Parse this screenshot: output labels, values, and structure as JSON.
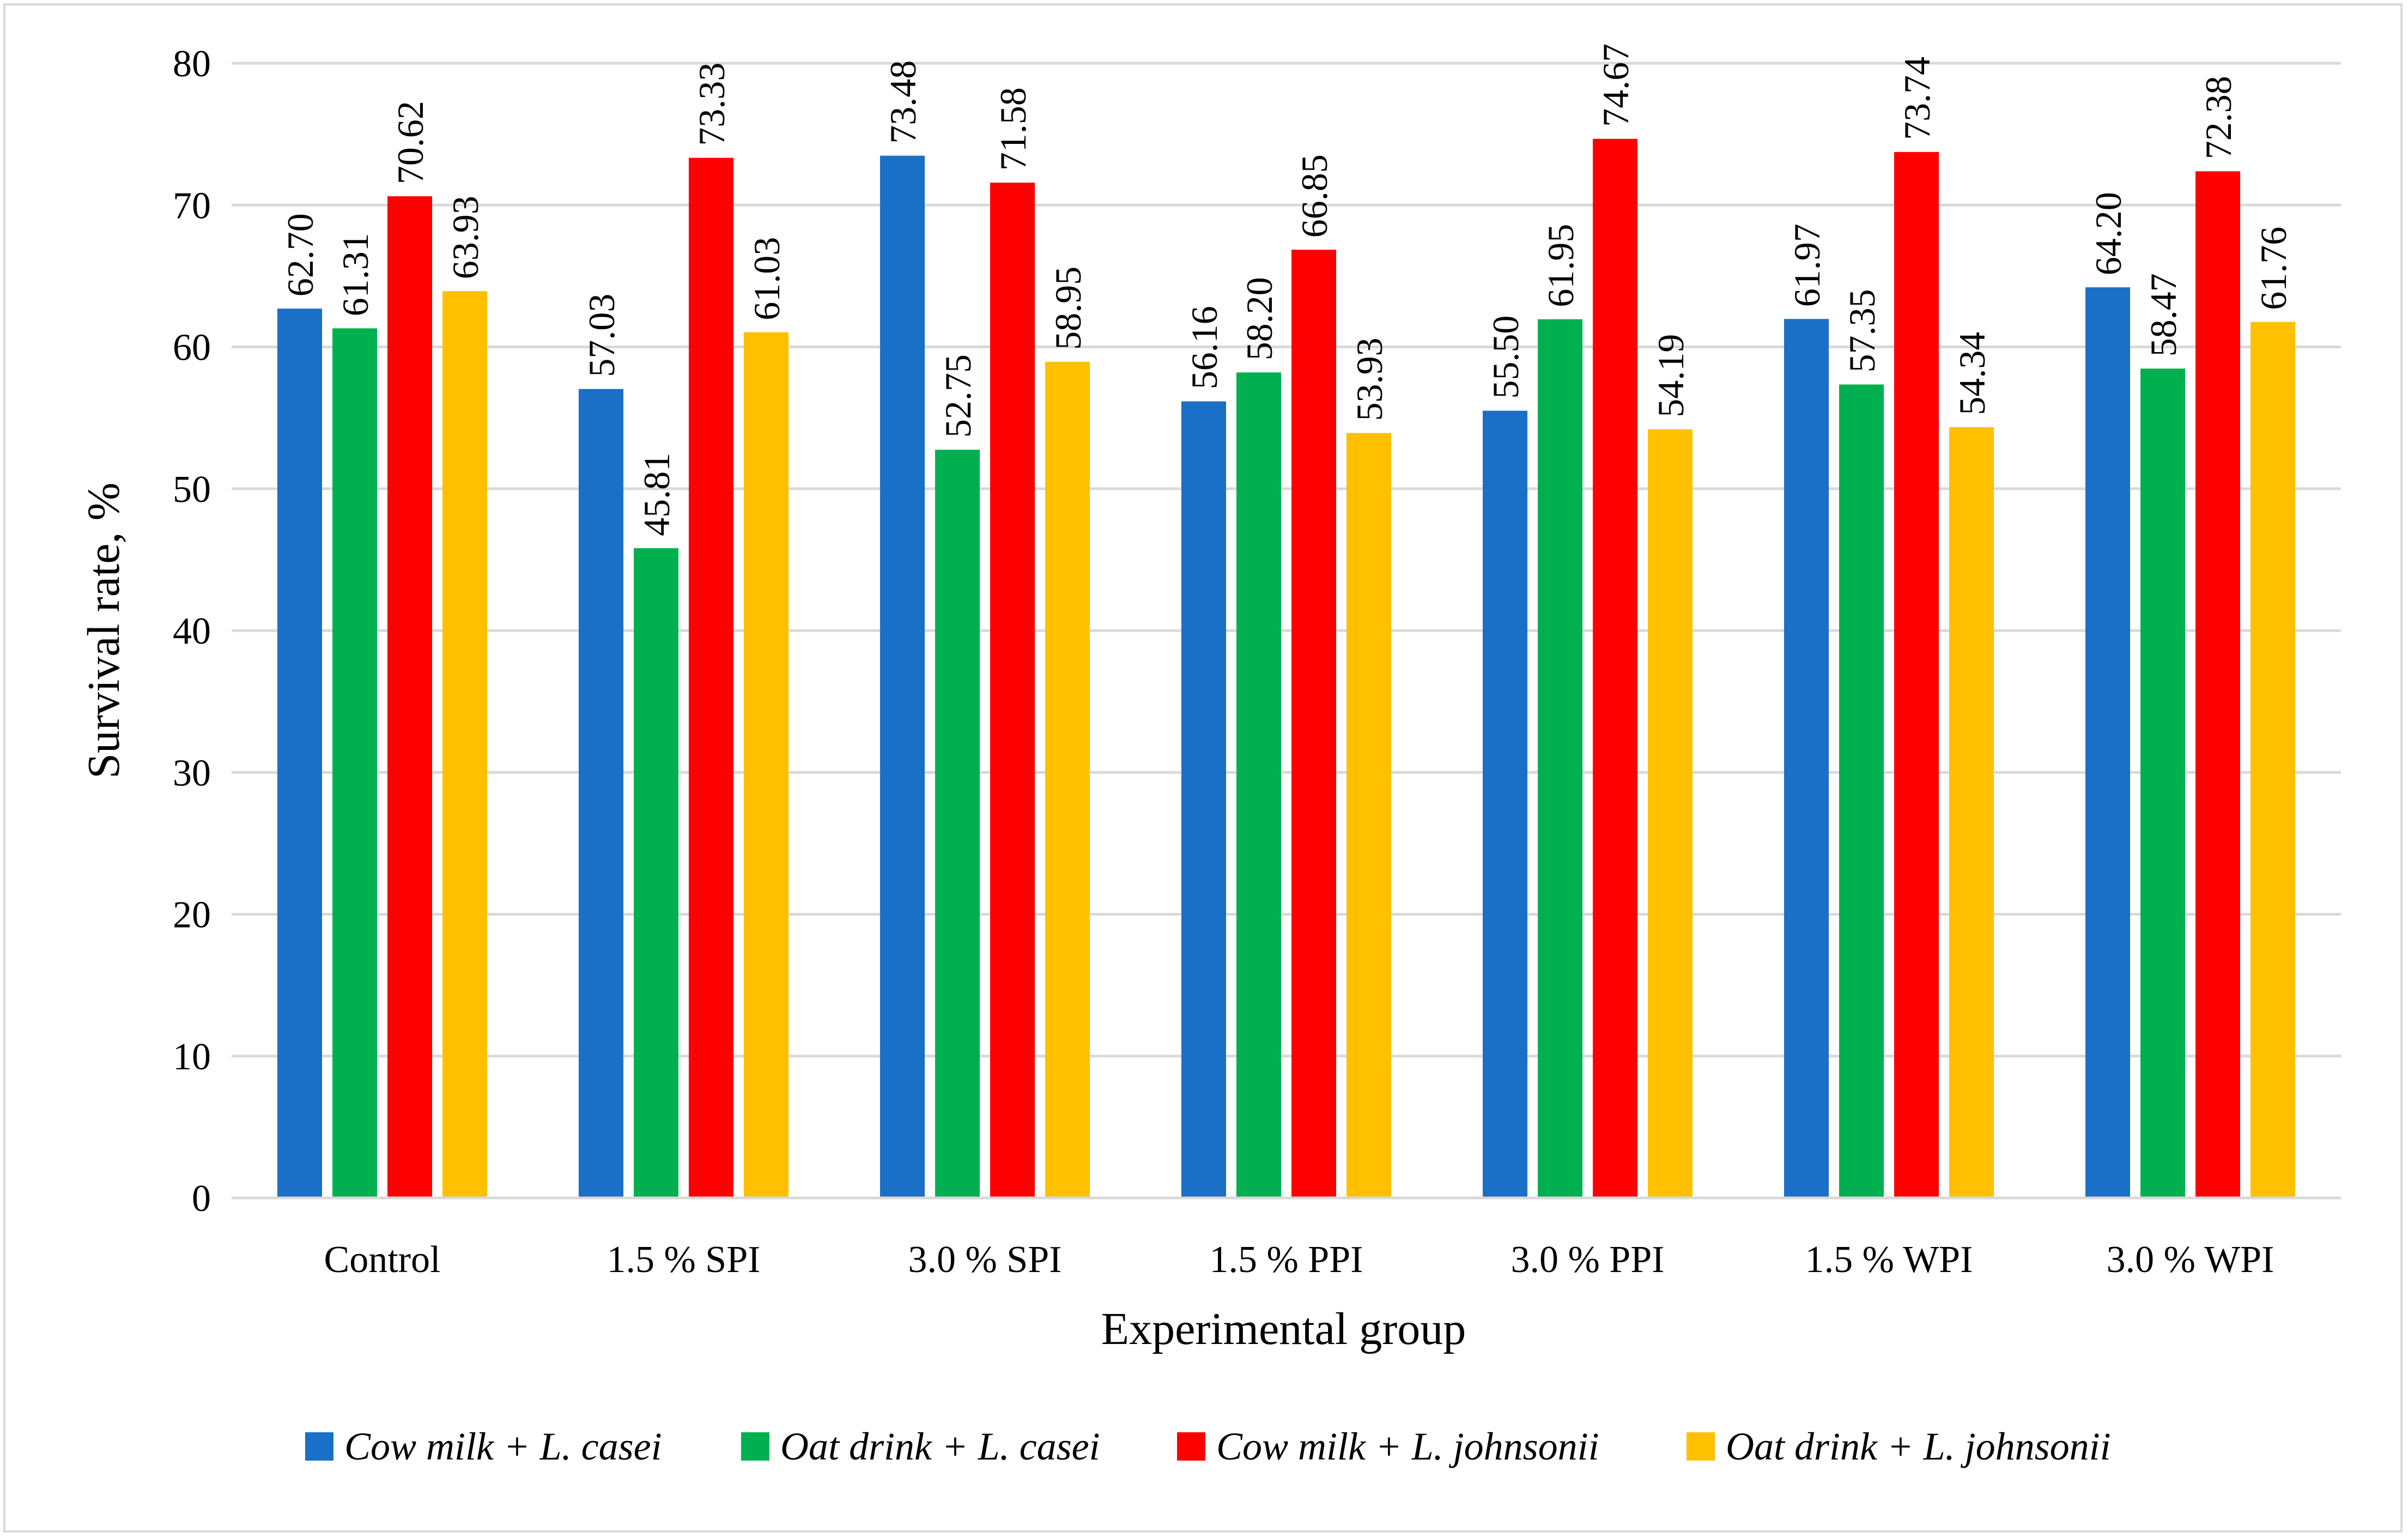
{
  "chart_data": {
    "type": "bar",
    "title": "",
    "xlabel": "Experimental group",
    "ylabel": "Survival rate, %",
    "ylim": [
      0,
      80
    ],
    "yticks": [
      "0",
      "10",
      "20",
      "30",
      "40",
      "50",
      "60",
      "70",
      "80"
    ],
    "grid": true,
    "legend_position": "bottom",
    "categories": [
      "Control",
      "1.5 % SPI",
      "3.0 % SPI",
      "1.5 % PPI",
      "3.0 % PPI",
      "1.5 % WPI",
      "3.0 % WPI"
    ],
    "series": [
      {
        "name": "Cow milk + L. casei",
        "color": "#1a6fc6",
        "values": [
          62.7,
          57.03,
          73.48,
          56.16,
          55.5,
          61.97,
          64.2
        ],
        "labels": [
          "62.70",
          "57.03",
          "73.48",
          "56.16",
          "55.50",
          "61.97",
          "64.20"
        ]
      },
      {
        "name": "Oat drink + L. casei",
        "color": "#00b050",
        "values": [
          61.31,
          45.81,
          52.75,
          58.2,
          61.95,
          57.35,
          58.47
        ],
        "labels": [
          "61.31",
          "45.81",
          "52.75",
          "58.20",
          "61.95",
          "57.35",
          "58.47"
        ]
      },
      {
        "name": "Cow milk + L. johnsonii",
        "color": "#ff0000",
        "values": [
          70.62,
          73.33,
          71.58,
          66.85,
          74.67,
          73.74,
          72.38
        ],
        "labels": [
          "70.62",
          "73.33",
          "71.58",
          "66.85",
          "74.67",
          "73.74",
          "72.38"
        ]
      },
      {
        "name": "Oat drink + L. johnsonii",
        "color": "#ffc000",
        "values": [
          63.93,
          61.03,
          58.95,
          53.93,
          54.19,
          54.34,
          61.76
        ],
        "labels": [
          "63.93",
          "61.03",
          "58.95",
          "53.93",
          "54.19",
          "54.34",
          "61.76"
        ]
      }
    ]
  }
}
